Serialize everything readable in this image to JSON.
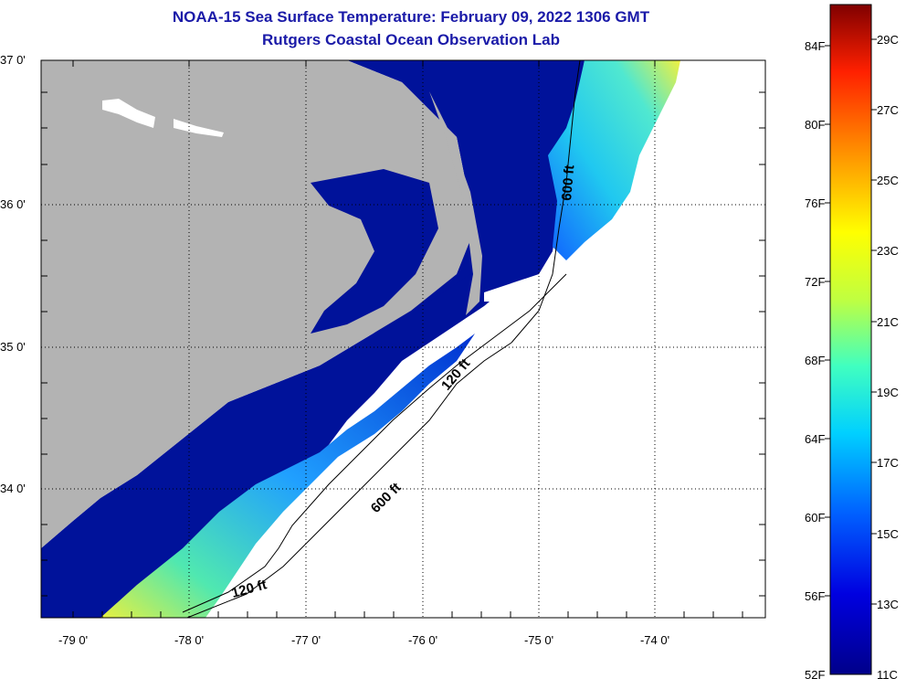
{
  "title": {
    "line1": "NOAA-15 Sea Surface Temperature:  February 09, 2022 1306 GMT",
    "line2": "Rutgers Coastal Ocean Observation Lab"
  },
  "map": {
    "lat_labels": [
      "37 0'",
      "36 0'",
      "35 0'",
      "34 0'"
    ],
    "lon_labels": [
      "-79 0'",
      "-78 0'",
      "-77 0'",
      "-76 0'",
      "-75 0'",
      "-74 0'"
    ],
    "contour_labels": [
      "600 ft",
      "120 ft",
      "600 ft",
      "120 ft"
    ],
    "colors": {
      "land": "#b3b3b3",
      "cloud": "#ffffff",
      "cold": "#00129a",
      "warm": "#f0e840"
    }
  },
  "colorbar": {
    "fahrenheit": [
      "84F",
      "80F",
      "76F",
      "72F",
      "68F",
      "64F",
      "60F",
      "56F",
      "52F"
    ],
    "celsius": [
      "29C",
      "27C",
      "25C",
      "23C",
      "21C",
      "19C",
      "17C",
      "15C",
      "13C",
      "11C"
    ],
    "stops": [
      "#00008a",
      "#0000e0",
      "#0060ff",
      "#00d0ff",
      "#40ffc0",
      "#c0ff40",
      "#ffff00",
      "#ff9000",
      "#ff2000",
      "#800000"
    ]
  }
}
